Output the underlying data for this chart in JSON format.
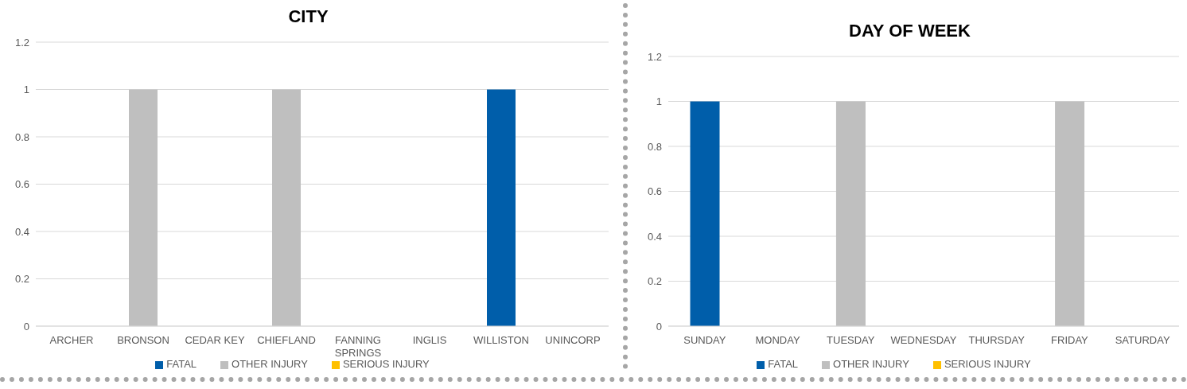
{
  "chart_data": [
    {
      "type": "bar",
      "title": "CITY",
      "stacked": true,
      "grid": "y",
      "legend": "bottom",
      "categories": [
        "ARCHER",
        "BRONSON",
        "CEDAR KEY",
        "CHIEFLAND",
        "FANNING SPRINGS",
        "INGLIS",
        "WILLISTON",
        "UNINCORP"
      ],
      "series": [
        {
          "name": "SERIOUS INJURY",
          "color": "#ffc000",
          "values": [
            0,
            0,
            0,
            0,
            0,
            0,
            0,
            0
          ]
        },
        {
          "name": "FATAL",
          "color": "#005eaa",
          "values": [
            0,
            0,
            0,
            0,
            0,
            0,
            1,
            0
          ]
        },
        {
          "name": "OTHER INJURY",
          "color": "#bfbfbf",
          "values": [
            0,
            1,
            0,
            1,
            0,
            0,
            0,
            0
          ]
        }
      ],
      "ylim": [
        0,
        1.2
      ],
      "yticks": [
        0,
        0.2,
        0.4,
        0.6,
        0.8,
        1,
        1.2
      ]
    },
    {
      "type": "bar",
      "title": "DAY OF WEEK",
      "stacked": true,
      "grid": "y",
      "legend": "bottom",
      "categories": [
        "SUNDAY",
        "MONDAY",
        "TUESDAY",
        "WEDNESDAY",
        "THURSDAY",
        "FRIDAY",
        "SATURDAY"
      ],
      "series": [
        {
          "name": "SERIOUS INJURY",
          "color": "#ffc000",
          "values": [
            0,
            0,
            0,
            0,
            0,
            0,
            0
          ]
        },
        {
          "name": "FATAL",
          "color": "#005eaa",
          "values": [
            1,
            0,
            0,
            0,
            0,
            0,
            0
          ]
        },
        {
          "name": "OTHER INJURY",
          "color": "#bfbfbf",
          "values": [
            0,
            0,
            1,
            0,
            0,
            1,
            0
          ]
        }
      ],
      "ylim": [
        0,
        1.2
      ],
      "yticks": [
        0,
        0.2,
        0.4,
        0.6,
        0.8,
        1,
        1.2
      ]
    }
  ]
}
